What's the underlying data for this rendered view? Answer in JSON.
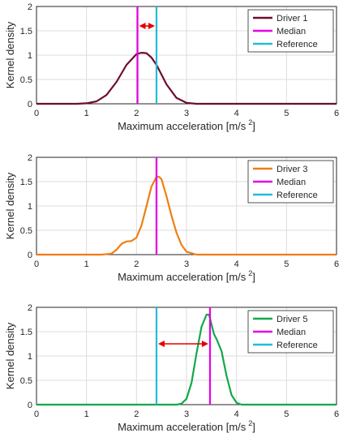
{
  "colors": {
    "grid": "#dcdcdc",
    "axis": "#262626",
    "median": "#e600e6",
    "reference": "#22bdd6",
    "arrow": "#e60000",
    "driver1": "#6e0c31",
    "driver3": "#f07d12",
    "driver5": "#11a84b"
  },
  "chart_data": [
    {
      "type": "line",
      "xlabel": "Maximum acceleration [m/s",
      "xlabel_sup": "2",
      "xlabel_tail": "]",
      "ylabel": "Kernel density",
      "xlim": [
        0,
        6
      ],
      "ylim": [
        0,
        2
      ],
      "xticks": [
        0,
        1,
        2,
        3,
        4,
        5,
        6
      ],
      "yticks": [
        0,
        0.5,
        1,
        1.5,
        2
      ],
      "grid": true,
      "legend_position": "top-right",
      "legend": [
        "Driver 1",
        "Median",
        "Reference"
      ],
      "series": [
        {
          "name": "Driver 1",
          "color": "driver1",
          "x": [
            0,
            0.8,
            1.0,
            1.2,
            1.4,
            1.6,
            1.8,
            2.0,
            2.1,
            2.2,
            2.3,
            2.4,
            2.5,
            2.6,
            2.8,
            3.0,
            3.2,
            6
          ],
          "y": [
            0,
            0,
            0.01,
            0.05,
            0.18,
            0.45,
            0.8,
            1.02,
            1.05,
            1.04,
            0.95,
            0.8,
            0.6,
            0.4,
            0.12,
            0.02,
            0,
            0
          ]
        }
      ],
      "median": 2.02,
      "reference": 2.4,
      "arrow": [
        2.02,
        2.4,
        1.6
      ]
    },
    {
      "type": "line",
      "xlabel": "Maximum acceleration [m/s",
      "xlabel_sup": "2",
      "xlabel_tail": "]",
      "ylabel": "Kernel density",
      "xlim": [
        0,
        6
      ],
      "ylim": [
        0,
        2
      ],
      "xticks": [
        0,
        1,
        2,
        3,
        4,
        5,
        6
      ],
      "yticks": [
        0,
        0.5,
        1,
        1.5,
        2
      ],
      "grid": true,
      "legend_position": "top-right",
      "legend": [
        "Driver 3",
        "Median",
        "Reference"
      ],
      "series": [
        {
          "name": "Driver 3",
          "color": "driver3",
          "x": [
            0,
            1.3,
            1.5,
            1.6,
            1.7,
            1.8,
            1.9,
            2.0,
            2.1,
            2.2,
            2.3,
            2.4,
            2.45,
            2.5,
            2.6,
            2.7,
            2.8,
            2.9,
            3.0,
            3.2,
            6
          ],
          "y": [
            0,
            0,
            0.02,
            0.1,
            0.22,
            0.27,
            0.28,
            0.35,
            0.6,
            1.0,
            1.4,
            1.6,
            1.6,
            1.55,
            1.2,
            0.8,
            0.45,
            0.2,
            0.06,
            0,
            0
          ]
        }
      ],
      "median": 2.4,
      "reference": 2.4
    },
    {
      "type": "line",
      "xlabel": "Maximum acceleration [m/s",
      "xlabel_sup": "2",
      "xlabel_tail": "]",
      "ylabel": "Kernel density",
      "xlim": [
        0,
        6
      ],
      "ylim": [
        0,
        2
      ],
      "xticks": [
        0,
        1,
        2,
        3,
        4,
        5,
        6
      ],
      "yticks": [
        0,
        0.5,
        1,
        1.5,
        2
      ],
      "grid": true,
      "legend_position": "top-right",
      "legend": [
        "Driver 5",
        "Median",
        "Reference"
      ],
      "series": [
        {
          "name": "Driver 5",
          "color": "driver5",
          "x": [
            0,
            2.8,
            2.9,
            3.0,
            3.1,
            3.2,
            3.3,
            3.4,
            3.45,
            3.5,
            3.55,
            3.6,
            3.7,
            3.8,
            3.9,
            4.0,
            4.1,
            6
          ],
          "y": [
            0,
            0,
            0.02,
            0.12,
            0.45,
            1.05,
            1.6,
            1.85,
            1.85,
            1.65,
            1.45,
            1.35,
            1.1,
            0.6,
            0.2,
            0.04,
            0,
            0
          ]
        }
      ],
      "median": 3.47,
      "reference": 2.4,
      "arrow": [
        2.4,
        3.47,
        1.25
      ]
    }
  ]
}
